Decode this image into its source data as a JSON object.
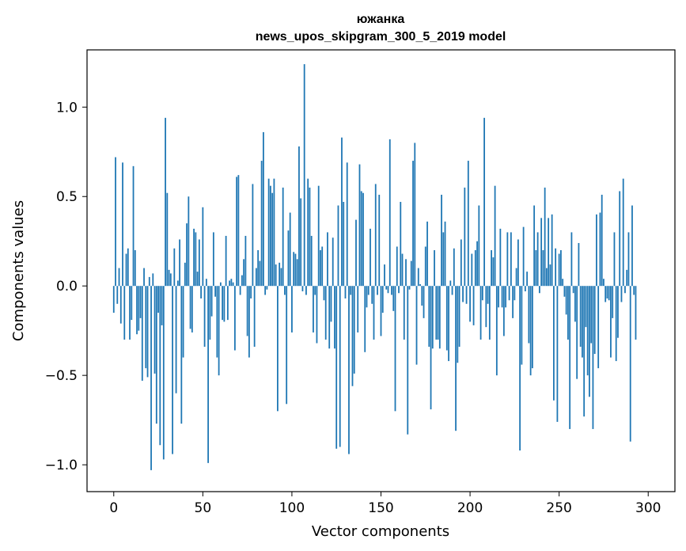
{
  "chart_data": {
    "type": "bar",
    "title": "южанка",
    "subtitle": "news_upos_skipgram_300_5_2019 model",
    "xlabel": "Vector components",
    "ylabel": "Components values",
    "xlim": [
      -15,
      315
    ],
    "ylim": [
      -1.15,
      1.32
    ],
    "xticks": [
      0,
      50,
      100,
      150,
      200,
      250,
      300
    ],
    "xtick_labels": [
      "0",
      "50",
      "100",
      "150",
      "200",
      "250",
      "300"
    ],
    "yticks": [
      -1.0,
      -0.5,
      0.0,
      0.5,
      1.0
    ],
    "ytick_labels": [
      "−1.0",
      "−0.5",
      "0.0",
      "0.5",
      "1.0"
    ],
    "bar_color": "#1f77b4",
    "values": [
      -0.15,
      0.72,
      -0.1,
      0.1,
      -0.21,
      0.69,
      -0.3,
      0.18,
      0.21,
      -0.3,
      -0.19,
      0.67,
      0.2,
      -0.27,
      -0.25,
      -0.18,
      -0.53,
      0.1,
      -0.46,
      -0.51,
      0.05,
      -1.03,
      0.07,
      -0.49,
      -0.77,
      -0.15,
      -0.89,
      -0.22,
      -0.97,
      0.94,
      0.52,
      0.09,
      0.07,
      -0.94,
      0.21,
      -0.6,
      0.03,
      0.26,
      -0.77,
      -0.4,
      0.13,
      0.35,
      0.5,
      -0.24,
      -0.26,
      0.32,
      0.3,
      0.08,
      0.26,
      -0.07,
      0.44,
      -0.34,
      0.04,
      -0.99,
      -0.3,
      -0.17,
      0.3,
      -0.06,
      -0.4,
      -0.5,
      0.02,
      -0.19,
      -0.2,
      0.28,
      -0.19,
      0.03,
      0.04,
      0.02,
      -0.36,
      0.61,
      0.62,
      -0.05,
      0.06,
      0.15,
      0.28,
      -0.28,
      -0.4,
      -0.07,
      0.57,
      -0.34,
      0.1,
      0.2,
      0.14,
      0.7,
      0.86,
      -0.05,
      -0.02,
      0.6,
      0.56,
      0.52,
      0.6,
      0.12,
      -0.7,
      0.13,
      0.1,
      0.55,
      -0.05,
      -0.66,
      0.31,
      0.41,
      -0.26,
      0.19,
      0.18,
      0.15,
      0.78,
      0.49,
      -0.03,
      1.24,
      -0.05,
      0.6,
      0.55,
      0.28,
      -0.26,
      -0.05,
      -0.32,
      0.56,
      0.2,
      0.22,
      -0.08,
      -0.3,
      0.3,
      -0.35,
      -0.2,
      0.27,
      -0.35,
      -0.91,
      0.45,
      -0.9,
      0.83,
      0.47,
      -0.07,
      0.69,
      -0.94,
      -0.05,
      -0.56,
      -0.49,
      0.37,
      -0.26,
      0.68,
      0.53,
      0.52,
      -0.37,
      -0.12,
      -0.05,
      0.32,
      -0.1,
      -0.3,
      0.57,
      -0.05,
      0.51,
      -0.28,
      -0.15,
      0.12,
      -0.02,
      -0.04,
      0.82,
      -0.05,
      -0.14,
      -0.7,
      0.22,
      -0.04,
      0.47,
      0.18,
      -0.3,
      0.15,
      -0.83,
      -0.02,
      0.14,
      0.7,
      0.8,
      -0.44,
      0.1,
      0.01,
      -0.11,
      -0.18,
      0.22,
      0.36,
      -0.34,
      -0.69,
      -0.35,
      0.2,
      -0.3,
      -0.3,
      -0.35,
      0.51,
      0.3,
      0.36,
      -0.36,
      -0.42,
      0.03,
      -0.05,
      0.21,
      -0.81,
      -0.43,
      -0.34,
      0.26,
      -0.09,
      0.55,
      -0.1,
      0.7,
      -0.2,
      0.18,
      -0.22,
      0.2,
      0.25,
      0.45,
      -0.3,
      -0.08,
      0.94,
      -0.23,
      -0.1,
      -0.3,
      0.2,
      0.16,
      0.56,
      -0.5,
      -0.12,
      0.32,
      -0.12,
      -0.28,
      -0.12,
      0.3,
      -0.08,
      0.3,
      -0.18,
      -0.08,
      0.1,
      0.26,
      -0.92,
      -0.44,
      0.33,
      -0.03,
      0.08,
      -0.32,
      -0.5,
      -0.46,
      0.45,
      0.2,
      0.3,
      -0.04,
      0.38,
      0.2,
      0.55,
      0.1,
      0.38,
      0.12,
      0.4,
      -0.64,
      0.21,
      -0.76,
      0.18,
      0.2,
      0.04,
      -0.06,
      -0.16,
      -0.3,
      -0.8,
      0.3,
      -0.04,
      -0.2,
      -0.52,
      0.24,
      -0.34,
      -0.4,
      -0.73,
      -0.23,
      -0.5,
      -0.62,
      -0.32,
      -0.8,
      -0.38,
      0.4,
      -0.46,
      0.41,
      0.51,
      0.04,
      -0.09,
      -0.07,
      -0.08,
      -0.4,
      -0.18,
      0.3,
      -0.42,
      -0.29,
      0.53,
      -0.09,
      0.6,
      -0.04,
      0.09,
      0.3,
      -0.87,
      0.45,
      -0.05,
      -0.3
    ]
  }
}
